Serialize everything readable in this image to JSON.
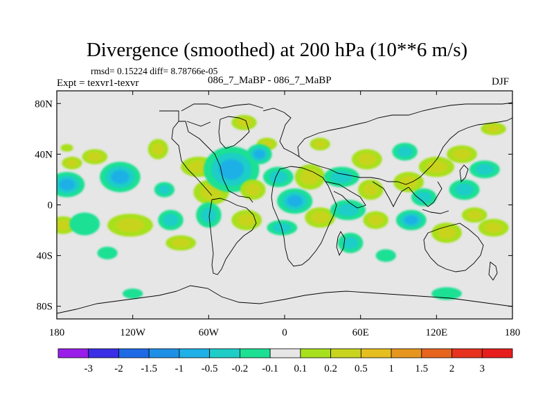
{
  "chart_data": {
    "type": "heatmap",
    "title": "Divergence (smoothed) at 200 hPa (10**6 m/s)",
    "stats_label": "rmsd= 0.15224 diff= 8.78766e-05",
    "experiment_label": "Expt = texvr1-texvr",
    "case_label": "086_7_MaBP - 086_7_MaBP",
    "season_label": "DJF",
    "x_axis": {
      "range": [
        -180,
        180
      ],
      "ticks": [
        {
          "value": -180,
          "label": "180"
        },
        {
          "value": -120,
          "label": "120W"
        },
        {
          "value": -60,
          "label": "60W"
        },
        {
          "value": 0,
          "label": "0"
        },
        {
          "value": 60,
          "label": "60E"
        },
        {
          "value": 120,
          "label": "120E"
        },
        {
          "value": 180,
          "label": "180"
        }
      ]
    },
    "y_axis": {
      "range": [
        -90,
        90
      ],
      "ticks": [
        {
          "value": 80,
          "label": "80N"
        },
        {
          "value": 40,
          "label": "40N"
        },
        {
          "value": 0,
          "label": "0"
        },
        {
          "value": -40,
          "label": "40S"
        },
        {
          "value": -80,
          "label": "80S"
        }
      ]
    },
    "colorbar": {
      "levels": [
        "-3",
        "-2",
        "-1.5",
        "-1",
        "-0.5",
        "-0.2",
        "-0.1",
        "0.1",
        "0.2",
        "0.5",
        "1",
        "1.5",
        "2",
        "3"
      ],
      "colors": [
        "#9A1EEA",
        "#3A2EE6",
        "#1E6AE6",
        "#1E8FE6",
        "#1EB0E6",
        "#1ECDC8",
        "#1EE094",
        "#E6E6E6",
        "#A8E01E",
        "#C8D41E",
        "#E6BE1E",
        "#E6961E",
        "#E6641E",
        "#E6321E",
        "#E61E1E"
      ]
    },
    "background_color": "#E6E6E6",
    "blobs": [
      {
        "lon": -172,
        "lat": 16,
        "rx": 14,
        "ry": 10,
        "value": -0.6
      },
      {
        "lon": -175,
        "lat": -16,
        "rx": 10,
        "ry": 7,
        "value": 0.3
      },
      {
        "lon": -172,
        "lat": 45,
        "rx": 5,
        "ry": 3,
        "value": 0.15
      },
      {
        "lon": -168,
        "lat": 33,
        "rx": 8,
        "ry": 5,
        "value": 0.25
      },
      {
        "lon": -150,
        "lat": 38,
        "rx": 10,
        "ry": 6,
        "value": 0.3
      },
      {
        "lon": -158,
        "lat": -15,
        "rx": 12,
        "ry": 9,
        "value": -0.15
      },
      {
        "lon": -130,
        "lat": 22,
        "rx": 16,
        "ry": 12,
        "value": -0.5
      },
      {
        "lon": -122,
        "lat": -16,
        "rx": 18,
        "ry": 9,
        "value": 0.35
      },
      {
        "lon": -140,
        "lat": -38,
        "rx": 8,
        "ry": 5,
        "value": -0.15
      },
      {
        "lon": -100,
        "lat": 44,
        "rx": 8,
        "ry": 8,
        "value": 0.3
      },
      {
        "lon": -95,
        "lat": 12,
        "rx": 8,
        "ry": 6,
        "value": -0.3
      },
      {
        "lon": -90,
        "lat": -12,
        "rx": 10,
        "ry": 8,
        "value": -0.4
      },
      {
        "lon": -82,
        "lat": -30,
        "rx": 12,
        "ry": 6,
        "value": 0.3
      },
      {
        "lon": -68,
        "lat": 30,
        "rx": 14,
        "ry": 8,
        "value": 0.3
      },
      {
        "lon": -58,
        "lat": 10,
        "rx": 14,
        "ry": 10,
        "value": 0.25
      },
      {
        "lon": -60,
        "lat": -8,
        "rx": 10,
        "ry": 10,
        "value": -0.3
      },
      {
        "lon": -42,
        "lat": 28,
        "rx": 22,
        "ry": 18,
        "value": -0.55
      },
      {
        "lon": -32,
        "lat": 65,
        "rx": 10,
        "ry": 6,
        "value": 0.3
      },
      {
        "lon": -25,
        "lat": 12,
        "rx": 10,
        "ry": 8,
        "value": 0.3
      },
      {
        "lon": -30,
        "lat": -12,
        "rx": 12,
        "ry": 8,
        "value": 0.35
      },
      {
        "lon": -14,
        "lat": 48,
        "rx": 8,
        "ry": 5,
        "value": 0.2
      },
      {
        "lon": -20,
        "lat": 40,
        "rx": 10,
        "ry": 8,
        "value": -0.5
      },
      {
        "lon": -5,
        "lat": 22,
        "rx": 12,
        "ry": 8,
        "value": -0.3
      },
      {
        "lon": 8,
        "lat": 3,
        "rx": 14,
        "ry": 10,
        "value": -0.6
      },
      {
        "lon": -2,
        "lat": -18,
        "rx": 12,
        "ry": 6,
        "value": -0.2
      },
      {
        "lon": 20,
        "lat": 22,
        "rx": 12,
        "ry": 10,
        "value": 0.25
      },
      {
        "lon": 28,
        "lat": -10,
        "rx": 12,
        "ry": 8,
        "value": 0.3
      },
      {
        "lon": 28,
        "lat": 48,
        "rx": 8,
        "ry": 5,
        "value": 0.2
      },
      {
        "lon": 45,
        "lat": 22,
        "rx": 14,
        "ry": 8,
        "value": -0.4
      },
      {
        "lon": 50,
        "lat": -4,
        "rx": 14,
        "ry": 8,
        "value": -0.35
      },
      {
        "lon": 52,
        "lat": -30,
        "rx": 10,
        "ry": 8,
        "value": -0.4
      },
      {
        "lon": 65,
        "lat": 36,
        "rx": 12,
        "ry": 8,
        "value": 0.2
      },
      {
        "lon": 68,
        "lat": 12,
        "rx": 10,
        "ry": 8,
        "value": 0.2
      },
      {
        "lon": 72,
        "lat": -12,
        "rx": 10,
        "ry": 7,
        "value": 0.35
      },
      {
        "lon": 80,
        "lat": -40,
        "rx": 8,
        "ry": 5,
        "value": -0.15
      },
      {
        "lon": 95,
        "lat": 42,
        "rx": 10,
        "ry": 7,
        "value": -0.3
      },
      {
        "lon": 98,
        "lat": 18,
        "rx": 12,
        "ry": 8,
        "value": 0.35
      },
      {
        "lon": 100,
        "lat": -12,
        "rx": 12,
        "ry": 8,
        "value": -0.5
      },
      {
        "lon": 110,
        "lat": 6,
        "rx": 10,
        "ry": 7,
        "value": -0.4
      },
      {
        "lon": 120,
        "lat": 30,
        "rx": 14,
        "ry": 8,
        "value": 0.3
      },
      {
        "lon": 128,
        "lat": -22,
        "rx": 12,
        "ry": 8,
        "value": 0.3
      },
      {
        "lon": 140,
        "lat": 40,
        "rx": 12,
        "ry": 7,
        "value": 0.4
      },
      {
        "lon": 142,
        "lat": 12,
        "rx": 12,
        "ry": 8,
        "value": -0.3
      },
      {
        "lon": 150,
        "lat": -8,
        "rx": 10,
        "ry": 6,
        "value": 0.3
      },
      {
        "lon": 158,
        "lat": 28,
        "rx": 12,
        "ry": 7,
        "value": -0.3
      },
      {
        "lon": 165,
        "lat": -18,
        "rx": 12,
        "ry": 7,
        "value": 0.2
      },
      {
        "lon": 165,
        "lat": 60,
        "rx": 10,
        "ry": 5,
        "value": 0.2
      },
      {
        "lon": 128,
        "lat": -70,
        "rx": 12,
        "ry": 5,
        "value": -0.15
      },
      {
        "lon": -120,
        "lat": -70,
        "rx": 8,
        "ry": 4,
        "value": -0.1
      }
    ]
  }
}
